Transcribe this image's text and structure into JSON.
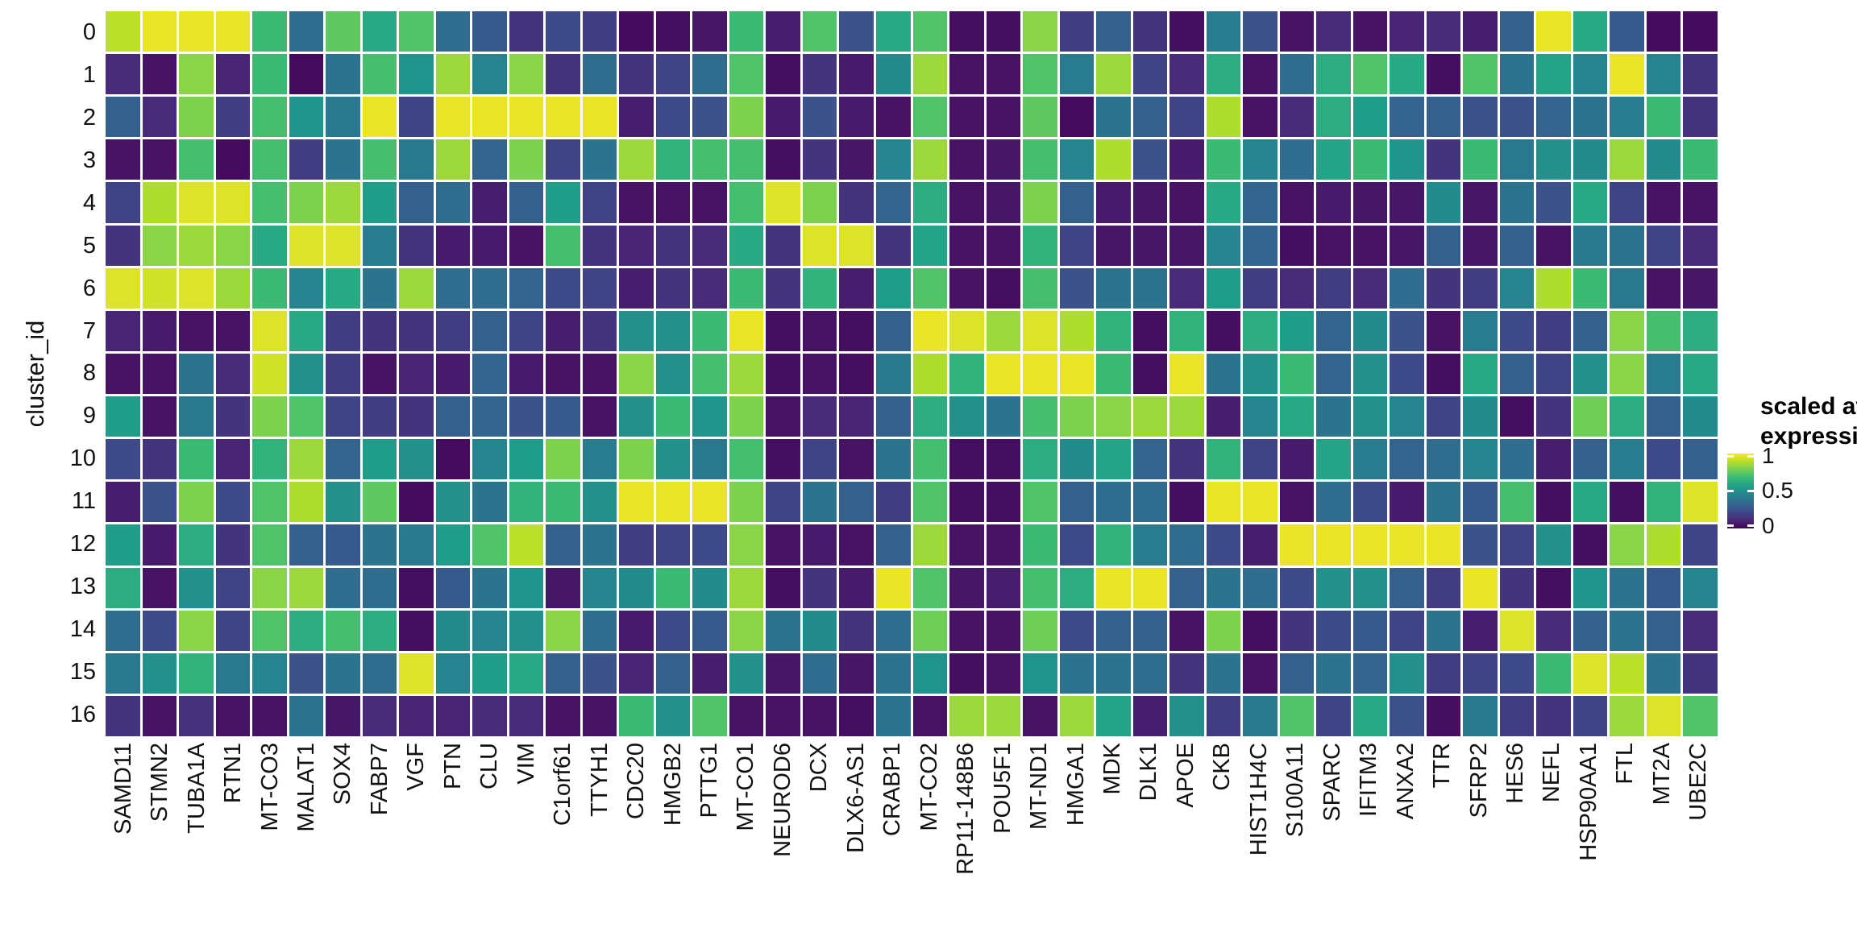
{
  "y_axis": {
    "title": "cluster_id"
  },
  "legend": {
    "title_line1": "scaled avg.",
    "title_line2": "expression",
    "tick_labels": [
      "1",
      "0.5",
      "0"
    ]
  },
  "chart_data": {
    "type": "heatmap",
    "title": "",
    "xlabel": "",
    "ylabel": "cluster_id",
    "legend_title": "scaled avg. expression",
    "legend_position": "right",
    "legend_ticks": [
      1,
      0.5,
      0
    ],
    "value_range": [
      0,
      1
    ],
    "grid": "white 3px gaps between cells",
    "colormap": "viridis",
    "colormap_stops": [
      [
        0.0,
        "#440154"
      ],
      [
        0.111,
        "#482878"
      ],
      [
        0.222,
        "#3e4a89"
      ],
      [
        0.333,
        "#31688e"
      ],
      [
        0.444,
        "#26828e"
      ],
      [
        0.556,
        "#1f9e89"
      ],
      [
        0.667,
        "#35b779"
      ],
      [
        0.778,
        "#6ece58"
      ],
      [
        0.889,
        "#b5de2b"
      ],
      [
        1.0,
        "#fde725"
      ]
    ],
    "x_categories": [
      "SAMD11",
      "STMN2",
      "TUBA1A",
      "RTN1",
      "MT-CO3",
      "MALAT1",
      "SOX4",
      "FABP7",
      "VGF",
      "PTN",
      "CLU",
      "VIM",
      "C1orf61",
      "TTYH1",
      "CDC20",
      "HMGB2",
      "PTTG1",
      "MT-CO1",
      "NEUROD6",
      "DCX",
      "DLX6-AS1",
      "CRABP1",
      "MT-CO2",
      "RP11-148B6",
      "POU5F1",
      "MT-ND1",
      "HMGA1",
      "MDK",
      "DLK1",
      "APOE",
      "CKB",
      "HIST1H4C",
      "S100A11",
      "SPARC",
      "IFITM3",
      "ANXA2",
      "TTR",
      "SFRP2",
      "HES6",
      "NEFL",
      "HSP90AA1",
      "FTL",
      "MT2A",
      "UBE2C"
    ],
    "y_categories": [
      "0",
      "1",
      "2",
      "3",
      "4",
      "5",
      "6",
      "7",
      "8",
      "9",
      "10",
      "11",
      "12",
      "13",
      "14",
      "15",
      "16"
    ],
    "values": [
      [
        0.9,
        0.97,
        0.97,
        0.97,
        0.68,
        0.35,
        0.75,
        0.6,
        0.72,
        0.35,
        0.28,
        0.15,
        0.22,
        0.18,
        0.03,
        0.04,
        0.06,
        0.68,
        0.08,
        0.72,
        0.25,
        0.6,
        0.72,
        0.04,
        0.04,
        0.82,
        0.18,
        0.3,
        0.15,
        0.04,
        0.42,
        0.25,
        0.05,
        0.12,
        0.05,
        0.1,
        0.12,
        0.08,
        0.3,
        0.97,
        0.6,
        0.28,
        0.03,
        0.03
      ],
      [
        0.12,
        0.05,
        0.82,
        0.1,
        0.68,
        0.03,
        0.38,
        0.7,
        0.52,
        0.85,
        0.45,
        0.82,
        0.15,
        0.35,
        0.15,
        0.2,
        0.35,
        0.72,
        0.04,
        0.15,
        0.07,
        0.48,
        0.85,
        0.05,
        0.05,
        0.72,
        0.42,
        0.85,
        0.2,
        0.12,
        0.62,
        0.05,
        0.35,
        0.62,
        0.72,
        0.6,
        0.04,
        0.72,
        0.38,
        0.58,
        0.45,
        0.97,
        0.45,
        0.15
      ],
      [
        0.3,
        0.12,
        0.8,
        0.18,
        0.7,
        0.52,
        0.4,
        0.97,
        0.2,
        0.97,
        0.97,
        0.97,
        0.97,
        0.97,
        0.08,
        0.22,
        0.25,
        0.8,
        0.07,
        0.25,
        0.07,
        0.05,
        0.72,
        0.05,
        0.05,
        0.75,
        0.03,
        0.38,
        0.3,
        0.2,
        0.88,
        0.05,
        0.12,
        0.62,
        0.55,
        0.32,
        0.3,
        0.25,
        0.25,
        0.32,
        0.38,
        0.42,
        0.68,
        0.15
      ],
      [
        0.05,
        0.05,
        0.7,
        0.03,
        0.7,
        0.18,
        0.38,
        0.7,
        0.4,
        0.85,
        0.32,
        0.8,
        0.2,
        0.38,
        0.85,
        0.65,
        0.7,
        0.7,
        0.04,
        0.15,
        0.06,
        0.45,
        0.85,
        0.05,
        0.06,
        0.7,
        0.45,
        0.88,
        0.25,
        0.07,
        0.68,
        0.45,
        0.35,
        0.58,
        0.68,
        0.52,
        0.15,
        0.68,
        0.4,
        0.5,
        0.48,
        0.85,
        0.48,
        0.68
      ],
      [
        0.2,
        0.88,
        0.95,
        0.95,
        0.7,
        0.8,
        0.85,
        0.55,
        0.3,
        0.35,
        0.08,
        0.3,
        0.55,
        0.2,
        0.05,
        0.05,
        0.05,
        0.7,
        0.95,
        0.8,
        0.15,
        0.32,
        0.62,
        0.05,
        0.06,
        0.8,
        0.3,
        0.07,
        0.06,
        0.05,
        0.6,
        0.32,
        0.05,
        0.07,
        0.06,
        0.06,
        0.48,
        0.06,
        0.38,
        0.25,
        0.6,
        0.2,
        0.05,
        0.05
      ],
      [
        0.15,
        0.82,
        0.85,
        0.82,
        0.6,
        0.95,
        0.95,
        0.42,
        0.15,
        0.07,
        0.07,
        0.05,
        0.7,
        0.15,
        0.1,
        0.15,
        0.12,
        0.6,
        0.15,
        0.95,
        0.95,
        0.15,
        0.58,
        0.05,
        0.05,
        0.65,
        0.2,
        0.06,
        0.06,
        0.06,
        0.45,
        0.32,
        0.04,
        0.05,
        0.05,
        0.06,
        0.3,
        0.06,
        0.3,
        0.05,
        0.4,
        0.38,
        0.2,
        0.12
      ],
      [
        0.95,
        0.93,
        0.95,
        0.85,
        0.68,
        0.45,
        0.6,
        0.38,
        0.85,
        0.35,
        0.35,
        0.32,
        0.22,
        0.2,
        0.08,
        0.15,
        0.12,
        0.68,
        0.15,
        0.65,
        0.08,
        0.55,
        0.72,
        0.05,
        0.04,
        0.7,
        0.25,
        0.38,
        0.38,
        0.12,
        0.55,
        0.18,
        0.12,
        0.18,
        0.12,
        0.35,
        0.15,
        0.18,
        0.45,
        0.88,
        0.68,
        0.4,
        0.05,
        0.06
      ],
      [
        0.1,
        0.07,
        0.05,
        0.05,
        0.95,
        0.6,
        0.18,
        0.15,
        0.15,
        0.18,
        0.3,
        0.2,
        0.08,
        0.15,
        0.5,
        0.5,
        0.68,
        0.97,
        0.04,
        0.05,
        0.04,
        0.3,
        0.97,
        0.95,
        0.85,
        0.95,
        0.88,
        0.65,
        0.04,
        0.65,
        0.04,
        0.62,
        0.55,
        0.32,
        0.48,
        0.25,
        0.05,
        0.42,
        0.22,
        0.18,
        0.3,
        0.82,
        0.7,
        0.62
      ],
      [
        0.05,
        0.05,
        0.38,
        0.12,
        0.93,
        0.5,
        0.18,
        0.05,
        0.1,
        0.07,
        0.32,
        0.07,
        0.05,
        0.05,
        0.82,
        0.5,
        0.7,
        0.85,
        0.04,
        0.05,
        0.04,
        0.4,
        0.88,
        0.65,
        0.97,
        0.97,
        0.97,
        0.68,
        0.04,
        0.97,
        0.38,
        0.5,
        0.68,
        0.32,
        0.5,
        0.22,
        0.04,
        0.6,
        0.3,
        0.2,
        0.5,
        0.82,
        0.42,
        0.6
      ],
      [
        0.55,
        0.05,
        0.4,
        0.15,
        0.8,
        0.72,
        0.2,
        0.18,
        0.15,
        0.3,
        0.32,
        0.25,
        0.28,
        0.05,
        0.5,
        0.68,
        0.52,
        0.8,
        0.05,
        0.12,
        0.1,
        0.3,
        0.62,
        0.5,
        0.38,
        0.7,
        0.8,
        0.82,
        0.85,
        0.85,
        0.08,
        0.45,
        0.6,
        0.38,
        0.5,
        0.45,
        0.2,
        0.48,
        0.04,
        0.15,
        0.78,
        0.62,
        0.3,
        0.48
      ],
      [
        0.22,
        0.15,
        0.68,
        0.1,
        0.65,
        0.85,
        0.32,
        0.55,
        0.5,
        0.03,
        0.45,
        0.55,
        0.8,
        0.42,
        0.8,
        0.5,
        0.4,
        0.7,
        0.04,
        0.2,
        0.05,
        0.38,
        0.7,
        0.04,
        0.04,
        0.62,
        0.48,
        0.58,
        0.32,
        0.15,
        0.65,
        0.2,
        0.07,
        0.58,
        0.42,
        0.32,
        0.35,
        0.45,
        0.35,
        0.08,
        0.3,
        0.42,
        0.22,
        0.3
      ],
      [
        0.08,
        0.25,
        0.8,
        0.22,
        0.72,
        0.88,
        0.5,
        0.75,
        0.03,
        0.5,
        0.38,
        0.65,
        0.68,
        0.5,
        0.97,
        0.97,
        0.97,
        0.8,
        0.2,
        0.38,
        0.3,
        0.18,
        0.72,
        0.04,
        0.04,
        0.72,
        0.3,
        0.35,
        0.35,
        0.04,
        0.97,
        0.97,
        0.05,
        0.35,
        0.22,
        0.07,
        0.38,
        0.28,
        0.7,
        0.04,
        0.6,
        0.04,
        0.65,
        0.95
      ],
      [
        0.55,
        0.07,
        0.62,
        0.15,
        0.72,
        0.3,
        0.28,
        0.38,
        0.4,
        0.55,
        0.72,
        0.9,
        0.3,
        0.38,
        0.18,
        0.2,
        0.22,
        0.82,
        0.05,
        0.07,
        0.05,
        0.3,
        0.85,
        0.05,
        0.05,
        0.68,
        0.22,
        0.65,
        0.42,
        0.35,
        0.22,
        0.08,
        0.97,
        0.97,
        0.97,
        0.97,
        0.97,
        0.25,
        0.2,
        0.5,
        0.04,
        0.82,
        0.88,
        0.2
      ],
      [
        0.62,
        0.05,
        0.5,
        0.2,
        0.82,
        0.85,
        0.35,
        0.35,
        0.04,
        0.28,
        0.38,
        0.52,
        0.06,
        0.45,
        0.48,
        0.68,
        0.48,
        0.85,
        0.04,
        0.15,
        0.07,
        0.97,
        0.72,
        0.06,
        0.08,
        0.7,
        0.62,
        0.97,
        0.97,
        0.3,
        0.38,
        0.35,
        0.22,
        0.5,
        0.5,
        0.3,
        0.18,
        0.97,
        0.15,
        0.04,
        0.52,
        0.38,
        0.28,
        0.45
      ],
      [
        0.35,
        0.22,
        0.82,
        0.2,
        0.72,
        0.62,
        0.7,
        0.62,
        0.04,
        0.48,
        0.45,
        0.5,
        0.82,
        0.35,
        0.07,
        0.22,
        0.28,
        0.82,
        0.38,
        0.48,
        0.15,
        0.35,
        0.78,
        0.05,
        0.05,
        0.78,
        0.22,
        0.3,
        0.3,
        0.05,
        0.8,
        0.04,
        0.15,
        0.22,
        0.28,
        0.2,
        0.38,
        0.08,
        0.95,
        0.12,
        0.3,
        0.38,
        0.3,
        0.12
      ],
      [
        0.4,
        0.5,
        0.65,
        0.4,
        0.45,
        0.25,
        0.38,
        0.35,
        0.95,
        0.45,
        0.55,
        0.6,
        0.3,
        0.25,
        0.1,
        0.3,
        0.08,
        0.5,
        0.06,
        0.35,
        0.06,
        0.38,
        0.52,
        0.04,
        0.05,
        0.52,
        0.38,
        0.38,
        0.35,
        0.15,
        0.38,
        0.05,
        0.3,
        0.38,
        0.32,
        0.5,
        0.18,
        0.2,
        0.22,
        0.68,
        0.95,
        0.9,
        0.38,
        0.15
      ],
      [
        0.15,
        0.05,
        0.14,
        0.05,
        0.05,
        0.38,
        0.06,
        0.12,
        0.1,
        0.1,
        0.12,
        0.12,
        0.05,
        0.05,
        0.68,
        0.5,
        0.72,
        0.05,
        0.05,
        0.05,
        0.04,
        0.38,
        0.05,
        0.85,
        0.85,
        0.05,
        0.85,
        0.58,
        0.08,
        0.5,
        0.18,
        0.4,
        0.72,
        0.2,
        0.6,
        0.25,
        0.04,
        0.4,
        0.18,
        0.15,
        0.2,
        0.85,
        0.95,
        0.72
      ]
    ]
  }
}
